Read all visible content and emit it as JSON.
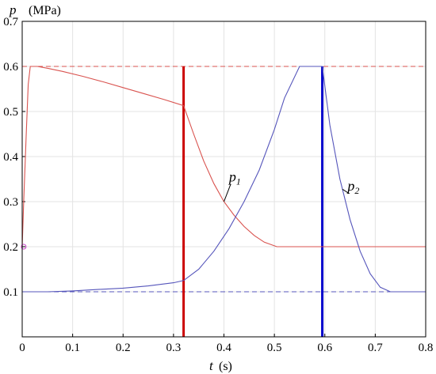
{
  "chart_data": {
    "type": "line",
    "title": "",
    "xlabel": "t",
    "xlabel_unit": "(s)",
    "ylabel": "p",
    "ylabel_unit": "(MPa)",
    "xlim": [
      0,
      0.8
    ],
    "ylim": [
      0,
      0.7
    ],
    "xticks": [
      "0",
      "0.1",
      "0.2",
      "0.3",
      "0.4",
      "0.5",
      "0.6",
      "0.7",
      "0.8"
    ],
    "yticks": [
      "0.1",
      "0.2",
      "0.3",
      "0.4",
      "0.5",
      "0.6",
      "0.7"
    ],
    "grid": true,
    "series": [
      {
        "name": "p1",
        "color": "#d9534f",
        "x": [
          0,
          0.003,
          0.008,
          0.012,
          0.016,
          0.02,
          0.03,
          0.05,
          0.08,
          0.12,
          0.16,
          0.2,
          0.24,
          0.28,
          0.32,
          0.34,
          0.36,
          0.38,
          0.4,
          0.42,
          0.44,
          0.46,
          0.48,
          0.505,
          0.55,
          0.6,
          0.7,
          0.8
        ],
        "y": [
          0.2,
          0.3,
          0.45,
          0.56,
          0.6,
          0.6,
          0.6,
          0.596,
          0.589,
          0.578,
          0.566,
          0.553,
          0.54,
          0.527,
          0.513,
          0.45,
          0.39,
          0.34,
          0.3,
          0.27,
          0.245,
          0.225,
          0.21,
          0.2,
          0.2,
          0.2,
          0.2,
          0.2
        ]
      },
      {
        "name": "p2",
        "color": "#5555bb",
        "x": [
          0,
          0.05,
          0.1,
          0.15,
          0.2,
          0.25,
          0.3,
          0.32,
          0.35,
          0.38,
          0.41,
          0.44,
          0.47,
          0.5,
          0.52,
          0.55,
          0.585,
          0.595,
          0.61,
          0.63,
          0.65,
          0.67,
          0.69,
          0.71,
          0.73,
          0.75,
          0.8
        ],
        "y": [
          0.1,
          0.1,
          0.102,
          0.105,
          0.108,
          0.113,
          0.12,
          0.125,
          0.15,
          0.19,
          0.24,
          0.3,
          0.37,
          0.46,
          0.53,
          0.6,
          0.6,
          0.6,
          0.47,
          0.35,
          0.26,
          0.19,
          0.14,
          0.11,
          0.1,
          0.1,
          0.1
        ]
      }
    ],
    "reference_lines": [
      {
        "axis": "y",
        "value": 0.6,
        "color": "#d9534f",
        "style": "dashed"
      },
      {
        "axis": "y",
        "value": 0.1,
        "color": "#5555bb",
        "style": "dashed"
      },
      {
        "axis": "x",
        "value": 0.32,
        "color": "#cc0000",
        "style": "solid-thick"
      },
      {
        "axis": "x",
        "value": 0.595,
        "color": "#0000cc",
        "style": "solid-thick"
      }
    ],
    "marker": {
      "x": 0.003,
      "y": 0.2,
      "color": "#cc44cc"
    },
    "annotations": [
      {
        "label": "p",
        "subscript": "1",
        "series": "p1",
        "at_x": 0.4,
        "label_x": 0.41,
        "label_y": 0.345
      },
      {
        "label": "p",
        "subscript": "2",
        "series": "p2",
        "at_x": 0.635,
        "label_x": 0.645,
        "label_y": 0.325
      }
    ]
  }
}
